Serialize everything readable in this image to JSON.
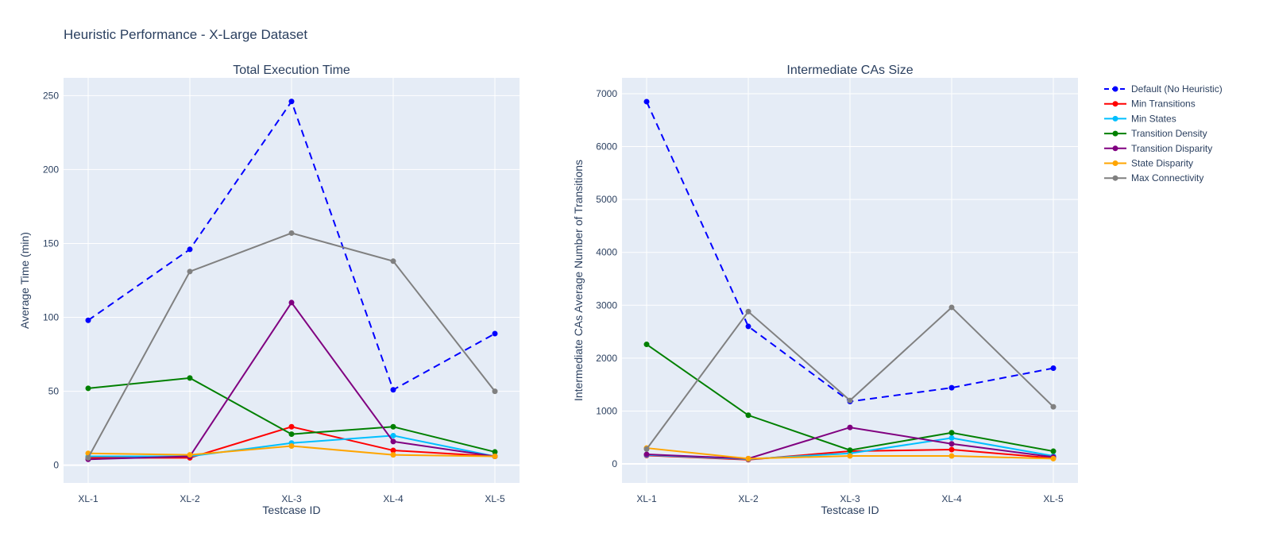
{
  "figure_title": "Heuristic Performance - X-Large Dataset",
  "colors": {
    "plot_bg": "#e5ecf6",
    "grid": "#ffffff",
    "text": "#2a3f5f"
  },
  "legend": {
    "placement": "top-right",
    "items": [
      {
        "name": "Default (No Heuristic)",
        "color": "#0000ff",
        "dash": "dash"
      },
      {
        "name": "Min Transitions",
        "color": "#ff0000",
        "dash": "solid"
      },
      {
        "name": "Min States",
        "color": "#00bfff",
        "dash": "solid"
      },
      {
        "name": "Transition Density",
        "color": "#008000",
        "dash": "solid"
      },
      {
        "name": "Transition Disparity",
        "color": "#800080",
        "dash": "solid"
      },
      {
        "name": "State Disparity",
        "color": "#ffa500",
        "dash": "solid"
      },
      {
        "name": "Max Connectivity",
        "color": "#808080",
        "dash": "solid"
      }
    ]
  },
  "chart_data": [
    {
      "type": "line",
      "title": "Total Execution Time",
      "xlabel": "Testcase ID",
      "ylabel": "Average Time (min)",
      "categories": [
        "XL-1",
        "XL-2",
        "XL-3",
        "XL-4",
        "XL-5"
      ],
      "ylim": [
        -12,
        262
      ],
      "yticks": [
        0,
        50,
        100,
        150,
        200,
        250
      ],
      "grid": true,
      "series": [
        {
          "name": "Default (No Heuristic)",
          "values": [
            98,
            146,
            246,
            51,
            89
          ]
        },
        {
          "name": "Min Transitions",
          "values": [
            5,
            5,
            26,
            10,
            6
          ]
        },
        {
          "name": "Min States",
          "values": [
            6,
            6,
            15,
            20,
            6
          ]
        },
        {
          "name": "Transition Density",
          "values": [
            52,
            59,
            21,
            26,
            9
          ]
        },
        {
          "name": "Transition Disparity",
          "values": [
            4,
            6,
            110,
            16,
            6
          ]
        },
        {
          "name": "State Disparity",
          "values": [
            8,
            7,
            13,
            7,
            6
          ]
        },
        {
          "name": "Max Connectivity",
          "values": [
            5,
            131,
            157,
            138,
            50
          ]
        }
      ]
    },
    {
      "type": "line",
      "title": "Intermediate CAs Size",
      "xlabel": "Testcase ID",
      "ylabel": "Intermediate CAs Average Number of Transitions",
      "categories": [
        "XL-1",
        "XL-2",
        "XL-3",
        "XL-4",
        "XL-5"
      ],
      "ylim": [
        -360,
        7300
      ],
      "yticks": [
        0,
        1000,
        2000,
        3000,
        4000,
        5000,
        6000,
        7000
      ],
      "grid": true,
      "series": [
        {
          "name": "Default (No Heuristic)",
          "values": [
            6850,
            2600,
            1180,
            1440,
            1810
          ]
        },
        {
          "name": "Min Transitions",
          "values": [
            160,
            80,
            240,
            270,
            110
          ]
        },
        {
          "name": "Min States",
          "values": [
            170,
            90,
            200,
            490,
            150
          ]
        },
        {
          "name": "Transition Density",
          "values": [
            2260,
            920,
            260,
            590,
            240
          ]
        },
        {
          "name": "Transition Disparity",
          "values": [
            180,
            100,
            690,
            380,
            130
          ]
        },
        {
          "name": "State Disparity",
          "values": [
            300,
            100,
            150,
            150,
            100
          ]
        },
        {
          "name": "Max Connectivity",
          "values": [
            280,
            2880,
            1200,
            2960,
            1080
          ]
        }
      ]
    }
  ]
}
